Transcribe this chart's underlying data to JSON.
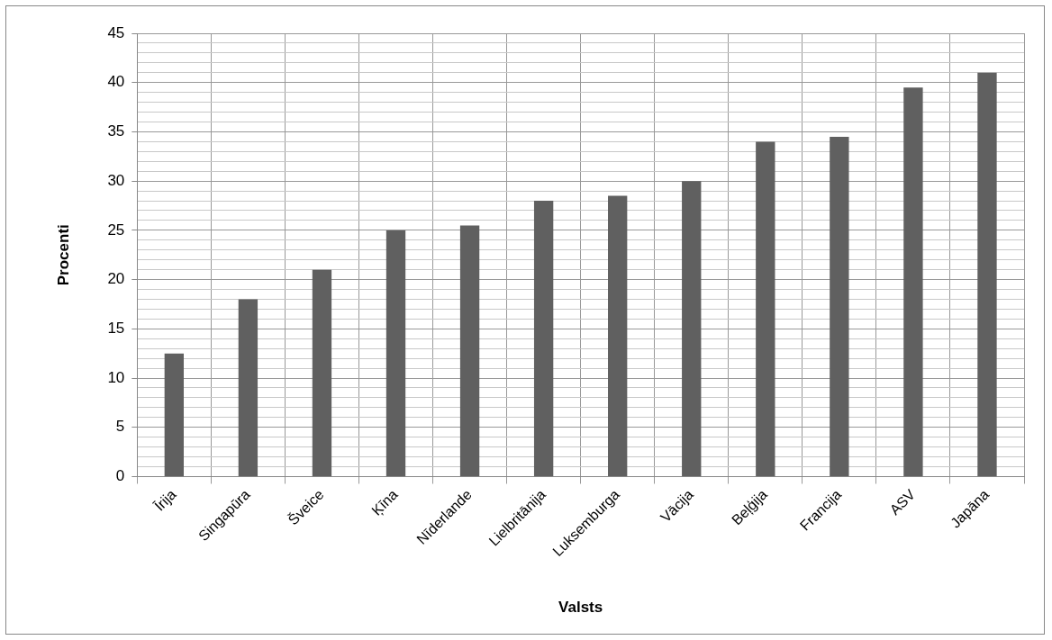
{
  "chart_data": {
    "type": "bar",
    "xlabel": "Valsts",
    "ylabel": "Procenti",
    "categories": [
      "Īrija",
      "Singapūra",
      "Šveice",
      "Ķīna",
      "Nīderlande",
      "Lielbritānija",
      "Luksemburga",
      "Vācija",
      "Beļģija",
      "Francija",
      "ASV",
      "Japāna"
    ],
    "values": [
      12.5,
      18,
      21,
      25,
      25.5,
      28,
      28.5,
      30,
      34,
      34.5,
      39.5,
      41
    ],
    "color": "#606060",
    "ylim": [
      0,
      45
    ],
    "yticks": [
      0,
      {
        "value": 1,
        "label": null
      },
      {
        "value": 2,
        "label": null
      },
      {
        "value": 3,
        "label": null
      },
      {
        "value": 4,
        "label": null
      },
      5,
      {
        "value": 6,
        "label": null
      },
      {
        "value": 7,
        "label": null
      },
      {
        "value": 8,
        "label": null
      },
      {
        "value": 9,
        "label": null
      },
      10,
      {
        "value": 11,
        "label": null
      },
      {
        "value": 12,
        "label": null
      },
      {
        "value": 13,
        "label": null
      },
      {
        "value": 14,
        "label": null
      },
      15,
      {
        "value": 16,
        "label": null
      },
      {
        "value": 17,
        "label": null
      },
      {
        "value": 18,
        "label": null
      },
      {
        "value": 19,
        "label": null
      },
      20,
      {
        "value": 21,
        "label": null
      },
      {
        "value": 22,
        "label": null
      },
      {
        "value": 23,
        "label": null
      },
      {
        "value": 24,
        "label": null
      },
      25,
      {
        "value": 26,
        "label": null
      },
      {
        "value": 27,
        "label": null
      },
      {
        "value": 28,
        "label": null
      },
      {
        "value": 29,
        "label": null
      },
      30,
      {
        "value": 31,
        "label": null
      },
      {
        "value": 32,
        "label": null
      },
      {
        "value": 33,
        "label": null
      },
      {
        "value": 34,
        "label": null
      },
      35,
      {
        "value": 36,
        "label": null
      },
      {
        "value": 37,
        "label": null
      },
      {
        "value": 38,
        "label": null
      },
      {
        "value": 39,
        "label": null
      },
      40,
      {
        "value": 41,
        "label": null
      },
      {
        "value": 42,
        "label": null
      },
      {
        "value": 43,
        "label": null
      },
      {
        "value": 44,
        "label": null
      },
      45
    ],
    "grid": true,
    "legend": false
  }
}
